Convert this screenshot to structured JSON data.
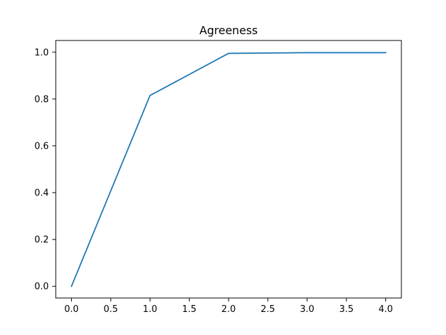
{
  "chart_data": {
    "type": "line",
    "title": "Agreeness",
    "xlabel": "",
    "ylabel": "",
    "x": [
      0,
      1,
      2,
      3,
      4
    ],
    "series": [
      {
        "values": [
          0.0,
          0.815,
          0.995,
          0.998,
          0.998
        ],
        "color": "#1f77b4"
      }
    ],
    "xlim": [
      -0.2,
      4.2
    ],
    "ylim": [
      -0.05,
      1.05
    ],
    "xticks": [
      0,
      0.5,
      1,
      1.5,
      2,
      2.5,
      3,
      3.5,
      4
    ],
    "xtick_labels": [
      "0.0",
      "0.5",
      "1.0",
      "1.5",
      "2.0",
      "2.5",
      "3.0",
      "3.5",
      "4.0"
    ],
    "yticks": [
      0,
      0.2,
      0.4,
      0.6,
      0.8,
      1.0
    ],
    "ytick_labels": [
      "0.0",
      "0.2",
      "0.4",
      "0.6",
      "0.8",
      "1.0"
    ],
    "grid": false,
    "legend": false
  }
}
